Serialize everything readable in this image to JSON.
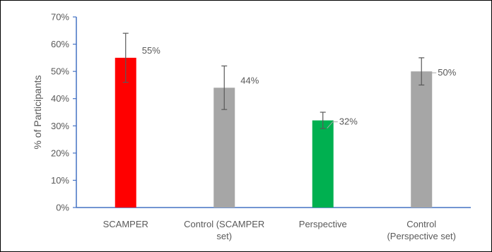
{
  "chart_data": {
    "type": "bar",
    "categories": [
      [
        "SCAMPER"
      ],
      [
        "Control (SCAMPER",
        "set)"
      ],
      [
        "Perspective"
      ],
      [
        "Control",
        "(Perspective set)"
      ]
    ],
    "values": [
      55,
      44,
      32,
      50
    ],
    "data_labels": [
      "55%",
      "44%",
      "32%",
      "50%"
    ],
    "error_bars": [
      {
        "low": 46,
        "high": 64
      },
      {
        "low": 36,
        "high": 52
      },
      {
        "low": 29,
        "high": 35
      },
      {
        "low": 45,
        "high": 55
      }
    ],
    "bar_colors": [
      "#ff0000",
      "#a6a6a6",
      "#00b050",
      "#a6a6a6"
    ],
    "ylabel": "% of Participants",
    "xlabel": "",
    "title": "",
    "ylim": [
      0,
      70
    ],
    "yticks": [
      0,
      10,
      20,
      30,
      40,
      50,
      60,
      70
    ],
    "ytick_labels": [
      "0%",
      "10%",
      "20%",
      "30%",
      "40%",
      "50%",
      "60%",
      "70%"
    ],
    "grid": false,
    "legend": "none",
    "axis_color": "#4472c4"
  }
}
